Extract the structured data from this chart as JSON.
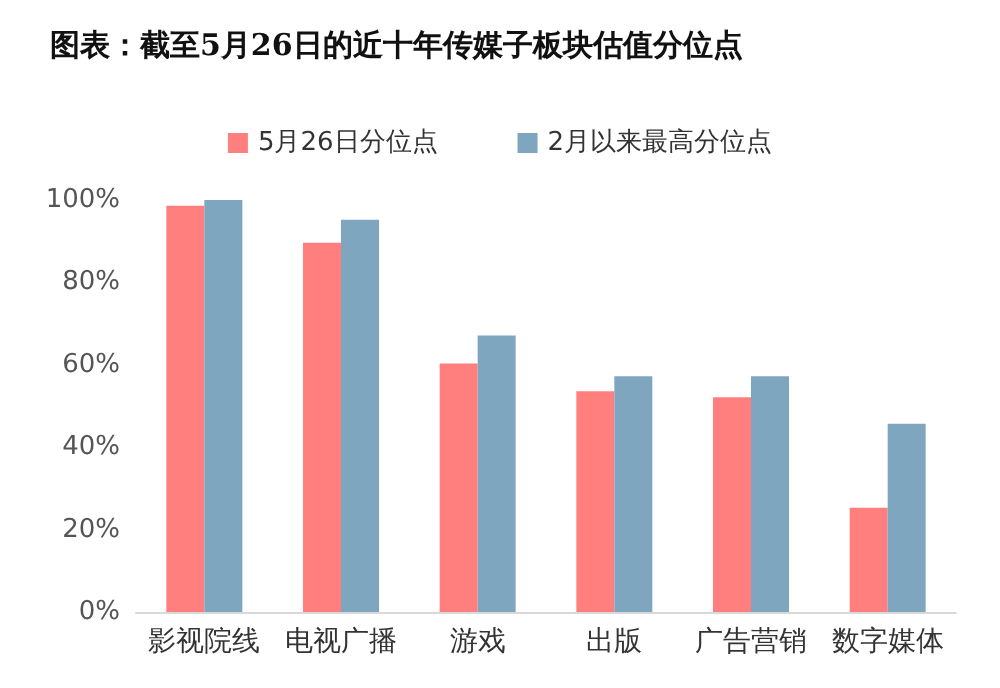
{
  "chart_data": {
    "type": "bar",
    "title": "图表：截至5月26日的近十年传媒子板块估值分位点",
    "categories": [
      "影视院线",
      "电视广播",
      "游戏",
      "出版",
      "广告营销",
      "数字媒体"
    ],
    "series": [
      {
        "name": "5月26日分位点",
        "color": "#ff7f7f",
        "values": [
          98.6,
          89.6,
          60.3,
          53.6,
          52.1,
          25.3
        ]
      },
      {
        "name": "2月以来最高分位点",
        "color": "#7fa6bf",
        "values": [
          100,
          95.2,
          67.1,
          57.2,
          57.2,
          45.7
        ]
      }
    ],
    "ylim": [
      0,
      100
    ],
    "yticks": [
      {
        "value": 0,
        "label": "0%"
      },
      {
        "value": 20,
        "label": "20%"
      },
      {
        "value": 40,
        "label": "40%"
      },
      {
        "value": 60,
        "label": "60%"
      },
      {
        "value": 80,
        "label": "80%"
      },
      {
        "value": 100,
        "label": "100%"
      }
    ],
    "grid": false,
    "legend": "top"
  }
}
